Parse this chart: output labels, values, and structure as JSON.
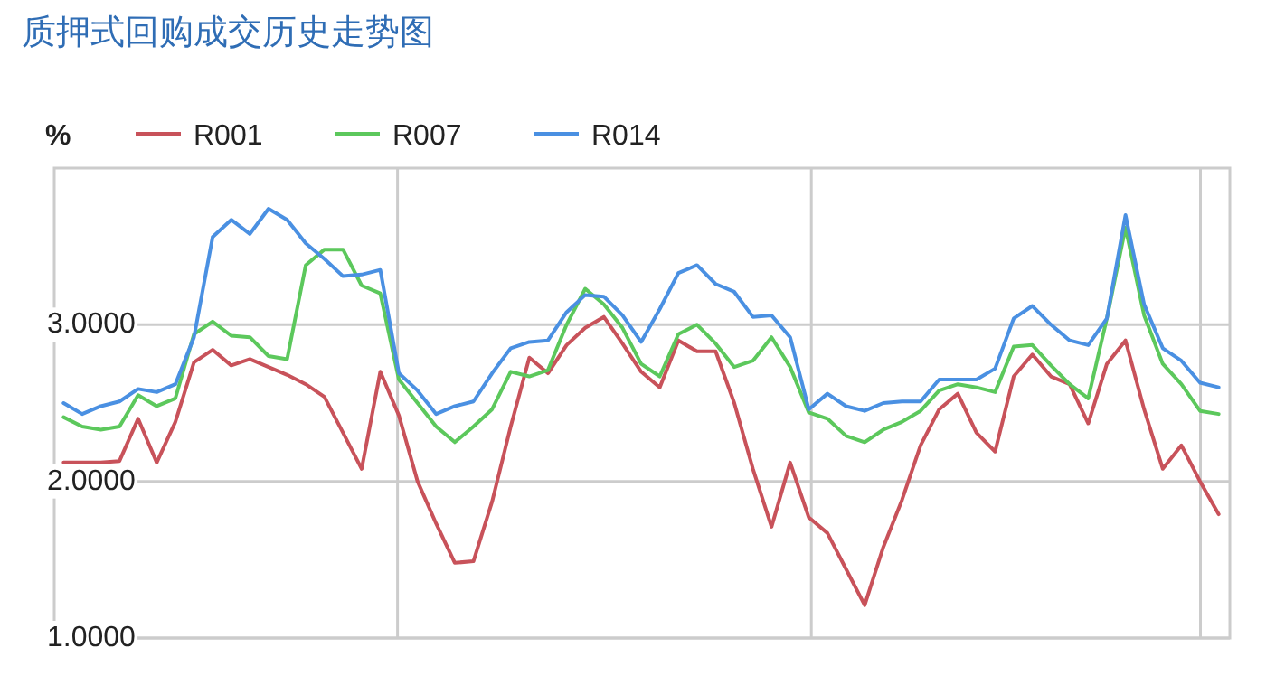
{
  "chart_data": {
    "type": "line",
    "title": "质押式回购成交历史走势图",
    "ylabel": "%",
    "legend": "top left",
    "grid": true,
    "categories": [
      null,
      null,
      null,
      null,
      null,
      null,
      null,
      null,
      null,
      null,
      null,
      null,
      null,
      null,
      null,
      null,
      null,
      null,
      null,
      null,
      null,
      null,
      null,
      null,
      null,
      null,
      null,
      null,
      null,
      null,
      null,
      null,
      null,
      null,
      null,
      null,
      null,
      null,
      null,
      null,
      null,
      null,
      null,
      null,
      null,
      null,
      null,
      null,
      null,
      null,
      null,
      null,
      null,
      null,
      null,
      null,
      null,
      null,
      null,
      null,
      null,
      null,
      null
    ],
    "ylim": [
      1,
      4
    ],
    "yticks": [
      {
        "value": 1,
        "label": "1.0000"
      },
      {
        "value": 2,
        "label": "2.0000"
      },
      {
        "value": 3,
        "label": "3.0000"
      }
    ],
    "series": [
      {
        "name": "R001",
        "color": "#c8525a",
        "values": [
          2.12,
          2.12,
          2.12,
          2.13,
          2.4,
          2.12,
          2.38,
          2.76,
          2.84,
          2.74,
          2.78,
          2.73,
          2.68,
          2.62,
          2.54,
          2.31,
          2.08,
          2.7,
          2.42,
          2.0,
          1.73,
          1.48,
          1.49,
          1.87,
          2.35,
          2.79,
          2.69,
          2.87,
          2.98,
          3.05,
          2.88,
          2.7,
          2.6,
          2.9,
          2.83,
          2.83,
          2.5,
          2.08,
          1.71,
          2.12,
          1.77,
          1.67,
          1.44,
          1.21,
          1.58,
          1.88,
          2.23,
          2.46,
          2.56,
          2.31,
          2.19,
          2.67,
          2.81,
          2.67,
          2.62,
          2.37,
          2.75,
          2.9,
          2.46,
          2.08,
          2.23,
          2.0,
          1.79
        ]
      },
      {
        "name": "R007",
        "color": "#5cc85c",
        "values": [
          2.41,
          2.35,
          2.33,
          2.35,
          2.55,
          2.48,
          2.53,
          2.94,
          3.02,
          2.93,
          2.92,
          2.8,
          2.78,
          3.38,
          3.48,
          3.48,
          3.25,
          3.2,
          2.65,
          2.5,
          2.35,
          2.25,
          2.35,
          2.46,
          2.7,
          2.67,
          2.71,
          3.0,
          3.23,
          3.13,
          2.98,
          2.75,
          2.67,
          2.94,
          3.0,
          2.88,
          2.73,
          2.77,
          2.92,
          2.73,
          2.44,
          2.4,
          2.29,
          2.25,
          2.33,
          2.38,
          2.45,
          2.58,
          2.62,
          2.6,
          2.57,
          2.86,
          2.87,
          2.74,
          2.62,
          2.53,
          3.04,
          3.62,
          3.06,
          2.75,
          2.62,
          2.45,
          2.43
        ]
      },
      {
        "name": "R014",
        "color": "#4a90e2",
        "values": [
          2.5,
          2.43,
          2.48,
          2.51,
          2.59,
          2.57,
          2.62,
          2.92,
          3.56,
          3.67,
          3.58,
          3.74,
          3.67,
          3.52,
          3.42,
          3.31,
          3.32,
          3.35,
          2.69,
          2.58,
          2.43,
          2.48,
          2.51,
          2.69,
          2.85,
          2.89,
          2.9,
          3.08,
          3.19,
          3.18,
          3.06,
          2.89,
          3.1,
          3.33,
          3.38,
          3.26,
          3.21,
          3.05,
          3.06,
          2.92,
          2.46,
          2.56,
          2.48,
          2.45,
          2.5,
          2.51,
          2.51,
          2.65,
          2.65,
          2.65,
          2.72,
          3.04,
          3.12,
          3.0,
          2.9,
          2.87,
          3.04,
          3.7,
          3.13,
          2.85,
          2.77,
          2.63,
          2.6
        ]
      }
    ]
  }
}
